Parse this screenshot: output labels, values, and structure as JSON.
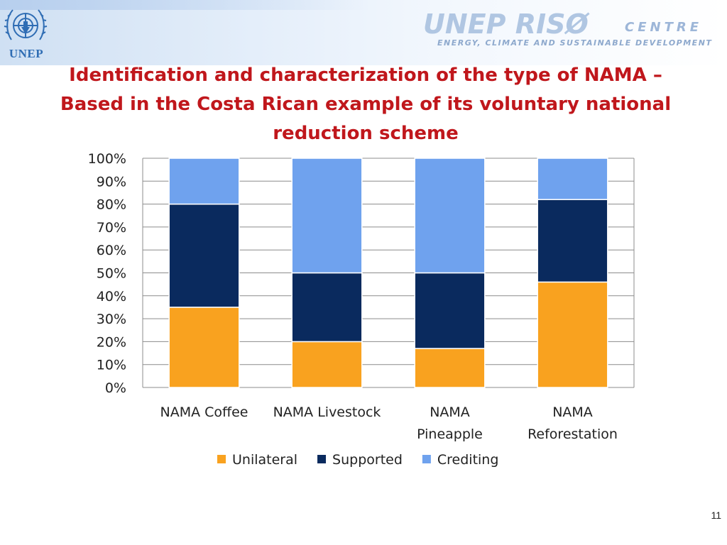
{
  "header": {
    "unep_label": "UNEP",
    "brand_main": "UNEP RISØ",
    "brand_centre": "CENTRE",
    "brand_sub": "ENERGY, CLIMATE AND SUSTAINABLE DEVELOPMENT"
  },
  "slide": {
    "title": "Identification and characterization of the type of NAMA – Based in the Costa Rican example of its voluntary national reduction scheme",
    "page_number": "11"
  },
  "chart_data": {
    "type": "bar",
    "stacked": "percent",
    "categories": [
      [
        "NAMA Coffee"
      ],
      [
        "NAMA Livestock"
      ],
      [
        "NAMA",
        "Pineapple"
      ],
      [
        "NAMA",
        "Reforestation"
      ]
    ],
    "series": [
      {
        "name": "Unilateral",
        "color": "#f9a21f",
        "values": [
          35,
          20,
          17,
          46
        ]
      },
      {
        "name": "Supported",
        "color": "#0a2a5e",
        "values": [
          45,
          30,
          33,
          36
        ]
      },
      {
        "name": "Crediting",
        "color": "#6fa2ee",
        "values": [
          20,
          50,
          50,
          18
        ]
      }
    ],
    "ylim": [
      0,
      100
    ],
    "yticks": [
      "0%",
      "10%",
      "20%",
      "30%",
      "40%",
      "50%",
      "60%",
      "70%",
      "80%",
      "90%",
      "100%"
    ],
    "grid": true,
    "legend": "bottom",
    "title": "",
    "xlabel": "",
    "ylabel": ""
  }
}
